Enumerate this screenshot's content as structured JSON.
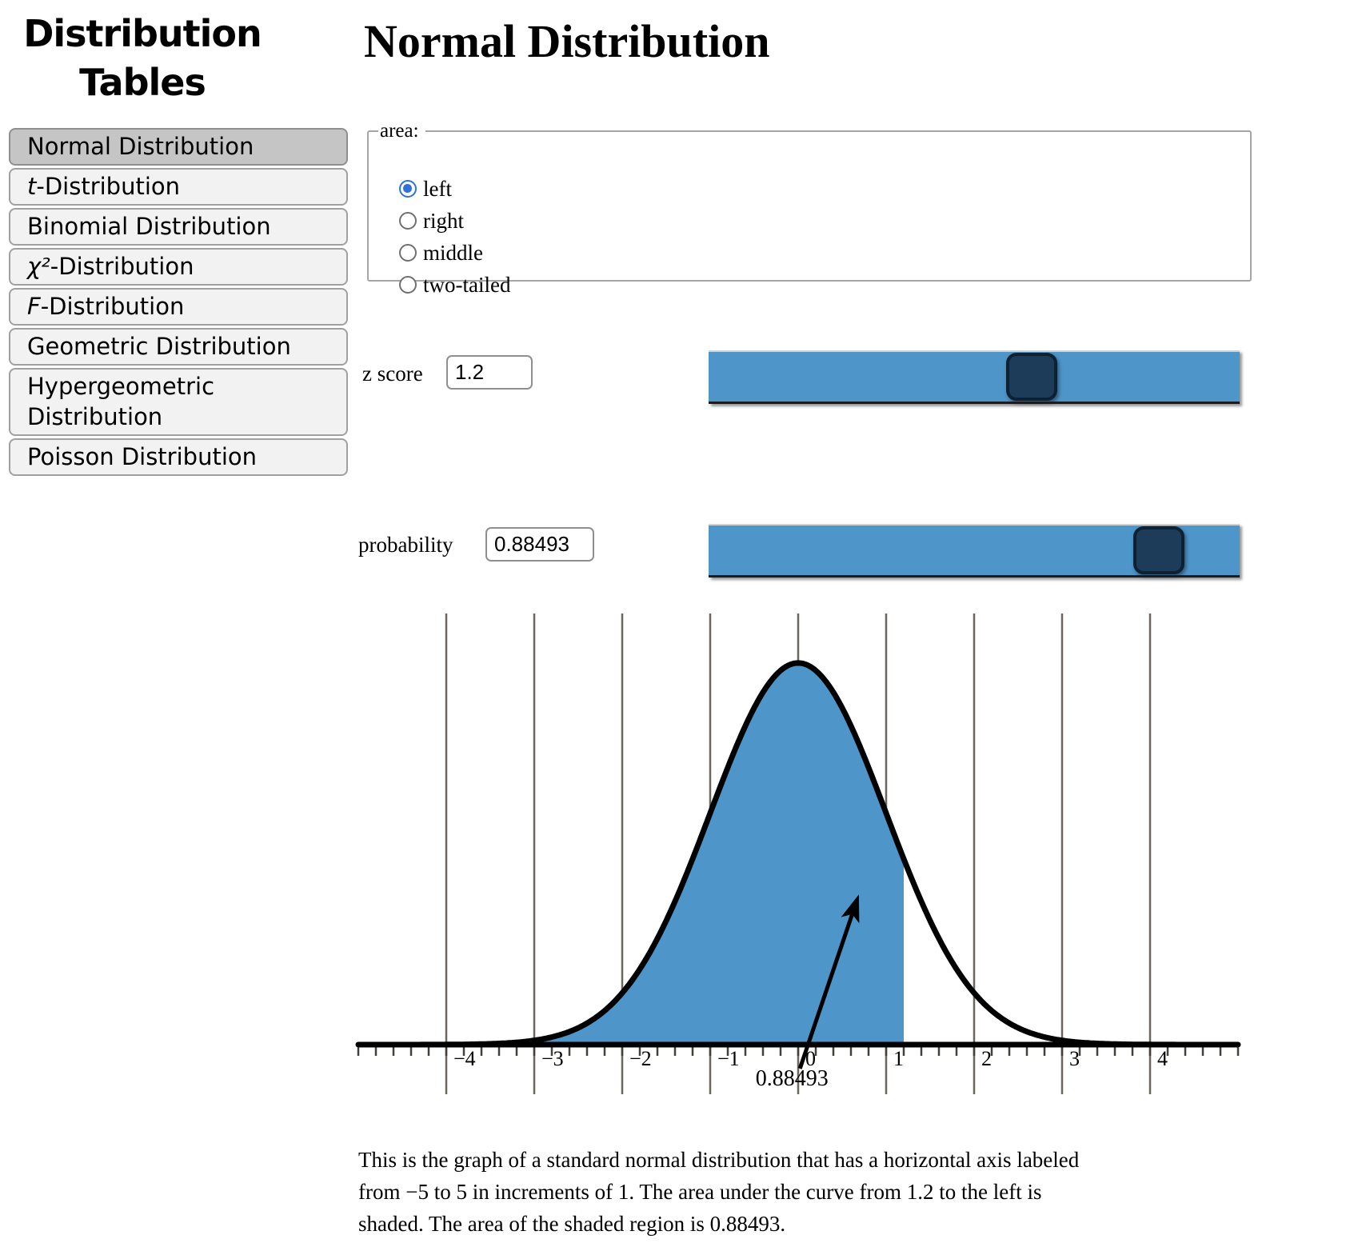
{
  "sidebar": {
    "title_lines": [
      "Distribution",
      "Tables"
    ],
    "items": [
      {
        "prefix": "",
        "rest": "Normal Distribution",
        "selected": true
      },
      {
        "prefix": "t",
        "rest": "-Distribution",
        "selected": false
      },
      {
        "prefix": "",
        "rest": "Binomial Distribution",
        "selected": false
      },
      {
        "prefix": "χ²",
        "rest": "-Distribution",
        "selected": false
      },
      {
        "prefix": "F",
        "rest": "-Distribution",
        "selected": false
      },
      {
        "prefix": "",
        "rest": "Geometric Distribution",
        "selected": false
      },
      {
        "prefix": "",
        "rest": "Hypergeometric Distribution",
        "selected": false
      },
      {
        "prefix": "",
        "rest": "Poisson Distribution",
        "selected": false
      }
    ]
  },
  "main": {
    "heading": "Normal Distribution",
    "area_fieldset": {
      "legend": "area:",
      "options": [
        {
          "label": "left",
          "selected": true
        },
        {
          "label": "right",
          "selected": false
        },
        {
          "label": "middle",
          "selected": false
        },
        {
          "label": "two-tailed",
          "selected": false
        }
      ]
    },
    "z_score": {
      "label": "z score",
      "value": "1.2",
      "slider_min": -5,
      "slider_max": 5,
      "slider_value": 1.2
    },
    "probability": {
      "label": "probability",
      "value": "0.88493",
      "slider_min": 0,
      "slider_max": 1,
      "slider_value": 0.88493
    },
    "description_lines": [
      "This is the graph of a standard normal distribution that has a horizontal axis labeled",
      "from −5 to 5 in increments of 1. The area under the curve from 1.2 to the left is",
      "shaded. The area of the shaded region is 0.88493."
    ]
  },
  "chart_data": {
    "type": "area",
    "title": "",
    "distribution": "standard-normal-pdf",
    "x_min": -5,
    "x_max": 5,
    "x_tick_step": 1,
    "minor_tick_step": 0.2,
    "x_tick_values": [
      -4,
      -3,
      -2,
      -1,
      0,
      1,
      2,
      3,
      4
    ],
    "x_tick_labels": [
      "−4",
      "−3",
      "−2",
      "−1",
      "0",
      "1",
      "2",
      "3",
      "4"
    ],
    "gridlines": true,
    "shade_from": -5,
    "shade_to": 1.2,
    "shaded_area": 0.88493,
    "annotation": {
      "text": "0.88493",
      "label_z": -0.07,
      "arrow_tail": {
        "z": 0.02,
        "density": -0.025
      },
      "arrow_tip": {
        "z": 0.69,
        "density": 0.157
      }
    }
  },
  "colors": {
    "shade_blue": "#4e96ca",
    "slider_blue": "#4e96ca",
    "handle_navy": "#1c3c59",
    "gridline": "#6c675c",
    "minor_tick": "#454039",
    "radio_selected_blue": "#2f72dd",
    "curve": "#000000"
  }
}
